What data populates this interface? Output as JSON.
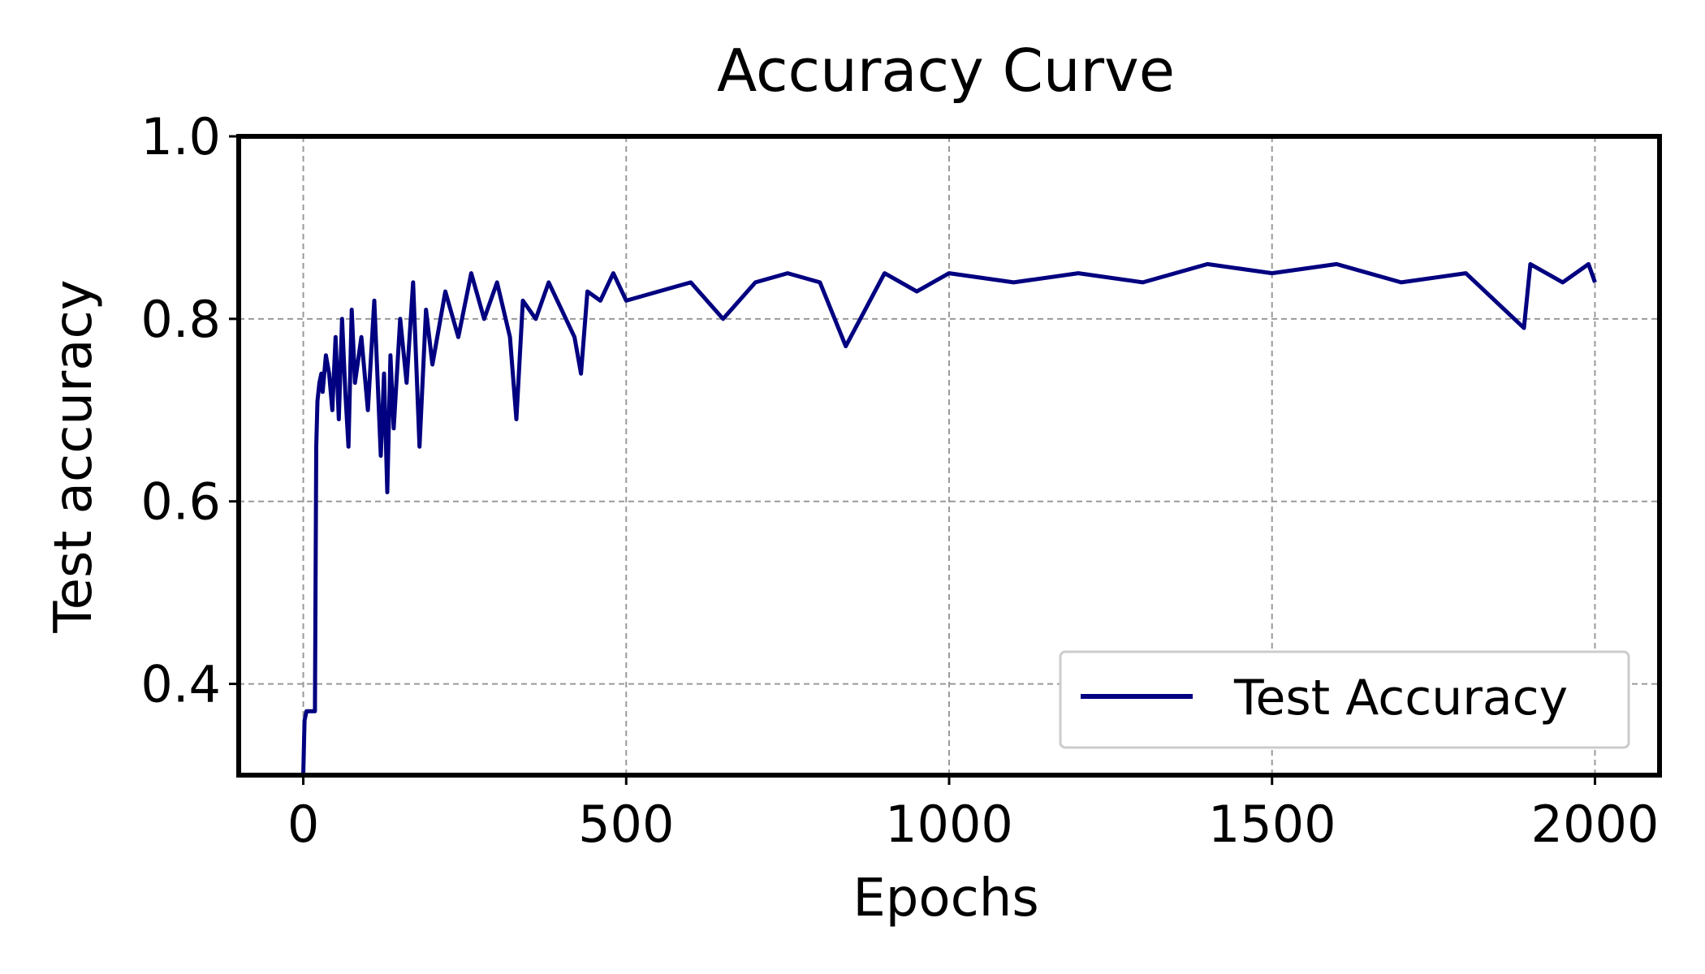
{
  "chart_data": {
    "type": "line",
    "title": "Accuracy Curve",
    "xlabel": "Epochs",
    "ylabel": "Test accuracy",
    "xlim": [
      -100,
      2100
    ],
    "ylim": [
      0.3,
      1.0
    ],
    "x_ticks": [
      0,
      500,
      1000,
      1500,
      2000
    ],
    "x_tick_labels": [
      "0",
      "500",
      "1000",
      "1500",
      "2000"
    ],
    "y_ticks": [
      0.4,
      0.6,
      0.8,
      1.0
    ],
    "y_tick_labels": [
      "0.4",
      "0.6",
      "0.8",
      "1.0"
    ],
    "grid": true,
    "legend_position": "lower-right",
    "colors": {
      "series": "#000080",
      "grid": "#9a9a9a",
      "frame": "#000000"
    },
    "series": [
      {
        "name": "Test Accuracy",
        "color": "#000080",
        "x": [
          0,
          2,
          5,
          10,
          15,
          18,
          20,
          22,
          25,
          28,
          30,
          35,
          40,
          45,
          50,
          55,
          60,
          65,
          70,
          75,
          80,
          90,
          100,
          110,
          120,
          125,
          130,
          135,
          140,
          150,
          160,
          170,
          180,
          190,
          200,
          220,
          240,
          260,
          280,
          300,
          320,
          330,
          340,
          360,
          380,
          400,
          420,
          430,
          440,
          460,
          480,
          500,
          550,
          600,
          650,
          700,
          750,
          800,
          840,
          900,
          950,
          1000,
          1100,
          1200,
          1300,
          1400,
          1500,
          1600,
          1700,
          1800,
          1890,
          1900,
          1950,
          1990,
          2000
        ],
        "y": [
          0.3,
          0.36,
          0.37,
          0.37,
          0.37,
          0.37,
          0.66,
          0.71,
          0.73,
          0.74,
          0.72,
          0.76,
          0.74,
          0.7,
          0.78,
          0.69,
          0.8,
          0.72,
          0.66,
          0.81,
          0.73,
          0.78,
          0.7,
          0.82,
          0.65,
          0.74,
          0.61,
          0.76,
          0.68,
          0.8,
          0.73,
          0.84,
          0.66,
          0.81,
          0.75,
          0.83,
          0.78,
          0.85,
          0.8,
          0.84,
          0.78,
          0.69,
          0.82,
          0.8,
          0.84,
          0.81,
          0.78,
          0.74,
          0.83,
          0.82,
          0.85,
          0.82,
          0.83,
          0.84,
          0.8,
          0.84,
          0.85,
          0.84,
          0.77,
          0.85,
          0.83,
          0.85,
          0.84,
          0.85,
          0.84,
          0.86,
          0.85,
          0.86,
          0.84,
          0.85,
          0.79,
          0.86,
          0.84,
          0.86,
          0.84
        ]
      }
    ]
  }
}
